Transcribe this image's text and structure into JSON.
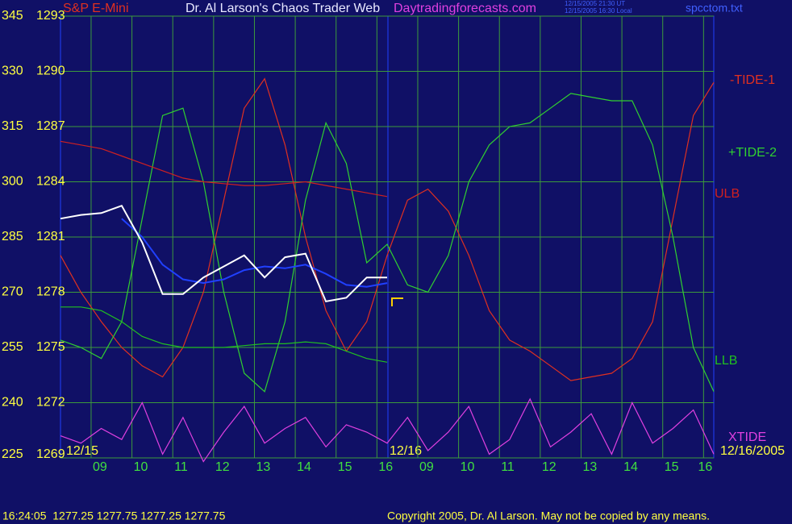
{
  "chart_data": {
    "type": "line",
    "title_left": "S&P E-Mini",
    "title": "Dr. Al Larson's Chaos Trader Web",
    "title_site": "Daytradingforecasts.com",
    "timestamps": [
      "12/15/2005 21:30 UT",
      "12/15/2005 16:30 Local"
    ],
    "file": "spcctom.txt",
    "date_labels": [
      "12/15",
      "12/16",
      "12/16/2005"
    ],
    "status": "16:24:05  1277.25 1277.75 1277.25 1277.75",
    "copyright": "Copyright 2005, Dr. Al Larson. May not be copied by any means.",
    "grid": true,
    "x": [
      8.25,
      8.75,
      9.25,
      9.75,
      10.25,
      10.75,
      11.25,
      11.75,
      12.25,
      12.75,
      13.25,
      13.75,
      14.25,
      14.75,
      15.25,
      15.75,
      16.25,
      16.75,
      17.25,
      17.75,
      18.25,
      18.75,
      19.25,
      19.75,
      20.25,
      20.75,
      21.25,
      21.75,
      22.25,
      22.75,
      23.25,
      23.75,
      24.25
    ],
    "xlim": [
      8.25,
      24.25
    ],
    "xticks": [
      {
        "value": 9,
        "label": "09"
      },
      10,
      11,
      12,
      13,
      14,
      15,
      16,
      {
        "value": 17,
        "label": "09"
      },
      {
        "value": 18,
        "label": "10"
      },
      {
        "value": 19,
        "label": "11"
      },
      {
        "value": 20,
        "label": "12"
      },
      {
        "value": 21,
        "label": "13"
      },
      {
        "value": 22,
        "label": "14"
      },
      {
        "value": 23,
        "label": "15"
      },
      {
        "value": 24,
        "label": "16"
      }
    ],
    "ylim": [
      225,
      345
    ],
    "yticks": [
      345,
      330,
      315,
      300,
      285,
      270,
      255,
      240,
      225
    ],
    "y2lim": [
      1269,
      1293
    ],
    "y2ticks": [
      1293,
      1290,
      1287,
      1284,
      1281,
      1278,
      1275,
      1272,
      1269
    ],
    "series": [
      {
        "name": "-TIDE-1",
        "color": "#e03020",
        "values": [
          280,
          270,
          262,
          255,
          250,
          247,
          255,
          270,
          295,
          320,
          328,
          310,
          285,
          265,
          254,
          262,
          280,
          295,
          298,
          292,
          280,
          265,
          257,
          254,
          250,
          246,
          247,
          248,
          252,
          262,
          290,
          318,
          327
        ]
      },
      {
        "name": "+TIDE-2",
        "color": "#30d030",
        "values": [
          257,
          255,
          252,
          262,
          290,
          318,
          320,
          300,
          270,
          248,
          243,
          262,
          295,
          316,
          305,
          278,
          283,
          272,
          270,
          280,
          300,
          310,
          315,
          316,
          320,
          324,
          323,
          322,
          322,
          310,
          285,
          255,
          243
        ]
      },
      {
        "name": "ULB",
        "color": "#d02020",
        "values": [
          311,
          310,
          309,
          307,
          305,
          303,
          301,
          300,
          299.5,
          299,
          299,
          299.5,
          300,
          299,
          298,
          297,
          296,
          null,
          null,
          null,
          null,
          null,
          null,
          null,
          null,
          null,
          null,
          null,
          null,
          null,
          null,
          null,
          null
        ]
      },
      {
        "name": "LLB",
        "color": "#20c020",
        "values": [
          266,
          266,
          265,
          262,
          258,
          256,
          255,
          255,
          255,
          255.5,
          256,
          256,
          256.5,
          256,
          254,
          252,
          251,
          null,
          null,
          null,
          null,
          null,
          null,
          null,
          null,
          null,
          null,
          null,
          null,
          null,
          null,
          null,
          null
        ]
      },
      {
        "name": "XTIDE",
        "color": "#e040e0",
        "values": [
          231,
          229,
          233,
          230,
          240,
          226,
          236,
          224,
          232,
          239,
          229,
          233,
          236,
          228,
          234,
          232,
          229,
          236,
          227,
          232,
          239,
          226,
          230,
          241,
          228,
          232,
          237,
          226,
          240,
          229,
          233,
          238,
          226
        ]
      },
      {
        "color": "#2040ff",
        "axis": "y2",
        "values": [
          null,
          null,
          null,
          1282,
          1281,
          1279.5,
          1278.7,
          1278.5,
          1278.7,
          1279.2,
          1279.4,
          1279.3,
          1279.5,
          1279,
          1278.4,
          1278.3,
          1278.5,
          null,
          null,
          null,
          null,
          null,
          null,
          null,
          null,
          null,
          null,
          null,
          null,
          null,
          null,
          null,
          null
        ]
      },
      {
        "color": "#ffffff",
        "axis": "y2",
        "values": [
          1282,
          1282.2,
          1282.3,
          1282.7,
          1280.7,
          1277.9,
          1277.9,
          1278.8,
          1279.4,
          1280,
          1278.8,
          1279.9,
          1280.1,
          1277.5,
          1277.7,
          1278.8,
          1278.8,
          null,
          null,
          null,
          null,
          null,
          null,
          null,
          null,
          null,
          null,
          null,
          null,
          null,
          null,
          null,
          null
        ]
      }
    ]
  }
}
